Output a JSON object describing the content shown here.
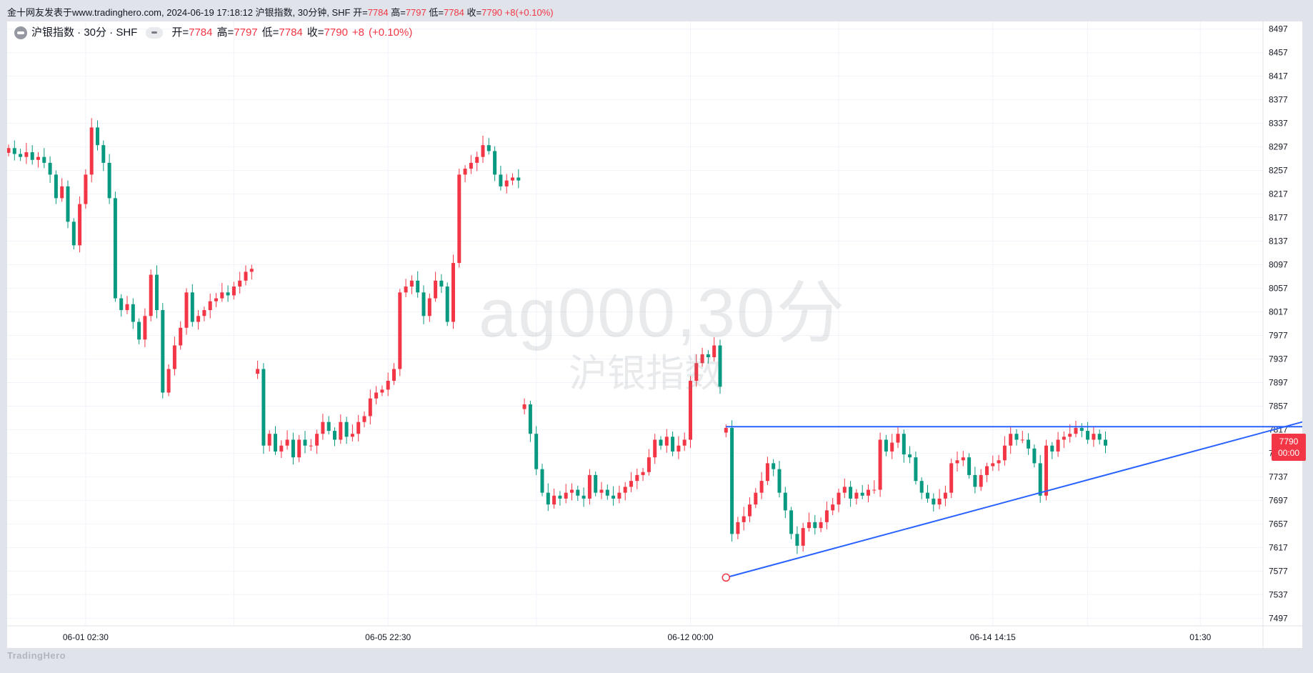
{
  "header": {
    "source_text": "金十网友发表于www.tradinghero.com, 2024-06-19 17:18:12 沪银指数, 30分钟, SHF",
    "o_label": "开=",
    "o_value": "7784",
    "h_label": "高=",
    "h_value": "7797",
    "l_label": "低=",
    "l_value": "7784",
    "c_label": "收=",
    "c_value": "7790",
    "change": "+8",
    "change_pct": "(+0.10%)"
  },
  "legend": {
    "symbol": "沪银指数 · 30分 · SHF",
    "o_label": "开=",
    "o_value": "7784",
    "h_label": "高=",
    "h_value": "7797",
    "l_label": "低=",
    "l_value": "7784",
    "c_label": "收=",
    "c_value": "7790",
    "change": "+8",
    "change_pct": "(+0.10%)"
  },
  "watermark": {
    "line1": "ag000,30分",
    "line2": "沪银指数"
  },
  "brand": "TradingHero",
  "price_badge": {
    "price": "7790",
    "countdown": "00:00"
  },
  "colors": {
    "up": "#f23645",
    "down": "#089981",
    "trendline": "#2962ff",
    "grid": "#f0f3fa"
  },
  "chart_data": {
    "type": "candlestick",
    "y_ticks": [
      8497,
      8457,
      8417,
      8377,
      8337,
      8297,
      8257,
      8217,
      8177,
      8137,
      8097,
      8057,
      8017,
      7977,
      7937,
      7897,
      7857,
      7817,
      7777,
      7737,
      7697,
      7657,
      7617,
      7577,
      7537,
      7497
    ],
    "ylim": [
      7484,
      8510
    ],
    "x_labels": [
      {
        "index": 13,
        "label": "06-01 02:30"
      },
      {
        "index": 64,
        "label": "06-05 22:30"
      },
      {
        "index": 115,
        "label": "06-12 00:00"
      },
      {
        "index": 166,
        "label": "06-14 14:15"
      },
      {
        "index": 201,
        "label": "01:30"
      }
    ],
    "grid": true,
    "segments": [
      {
        "start": 0,
        "close": [
          8295,
          8285,
          8280,
          8288,
          8275,
          8280,
          8270,
          8250,
          8210,
          8230,
          8170,
          8130,
          8200,
          8250,
          8330,
          8300,
          8270,
          8210,
          8040,
          8020,
          8030,
          8000,
          7970,
          8010,
          8080,
          8020,
          7880,
          7920,
          7960,
          7990,
          8050,
          8000,
          8010,
          8020,
          8035,
          8040,
          8050,
          8045,
          8060,
          8070,
          8085,
          8090
        ]
      },
      {
        "start": 42,
        "close": [
          7920,
          7790,
          7810,
          7780,
          7790,
          7800,
          7770,
          7800,
          7790,
          7790,
          7810,
          7830,
          7815,
          7800,
          7830,
          7805,
          7810,
          7830,
          7840,
          7870,
          7880,
          7885,
          7900,
          7920,
          8050,
          8060,
          8070,
          8050,
          8010,
          8040,
          8070,
          8060,
          8000,
          8100,
          8250,
          8260,
          8270,
          8280,
          8300,
          8290,
          8250,
          8230,
          8240,
          8245,
          8240
        ]
      },
      {
        "start": 87,
        "close": [
          7860,
          7810,
          7750,
          7710,
          7690,
          7705,
          7700,
          7710,
          7715,
          7705,
          7700,
          7740,
          7710,
          7715,
          7705,
          7700,
          7710,
          7720,
          7730,
          7740,
          7745,
          7770,
          7800,
          7790,
          7805,
          7780,
          7790,
          7800,
          7900,
          7930,
          7945,
          7940,
          7960,
          7890
        ]
      },
      {
        "start": 121,
        "close": [
          7820,
          7640,
          7660,
          7670,
          7690,
          7710,
          7730,
          7760,
          7750,
          7710,
          7680,
          7640,
          7620,
          7650,
          7660,
          7650,
          7660,
          7680,
          7690,
          7710,
          7720,
          7700,
          7710,
          7705,
          7715,
          7715,
          7800,
          7780,
          7795,
          7810,
          7775,
          7770,
          7730,
          7710,
          7700,
          7690,
          7700,
          7710,
          7760,
          7765,
          7770,
          7740,
          7720,
          7740,
          7755,
          7760,
          7765,
          7790,
          7810,
          7800,
          7800,
          7785,
          7760,
          7705,
          7790,
          7780,
          7800,
          7805,
          7810,
          7820,
          7815,
          7800,
          7810,
          7800,
          7790
        ]
      }
    ],
    "trendlines": [
      {
        "name": "resistance",
        "from": {
          "index": 121,
          "value": 7822
        },
        "to": {
          "index": 230,
          "value": 7822
        }
      },
      {
        "name": "support",
        "from": {
          "index": 121,
          "value": 7566
        },
        "to": {
          "index": 220,
          "value": 7835
        }
      }
    ]
  }
}
